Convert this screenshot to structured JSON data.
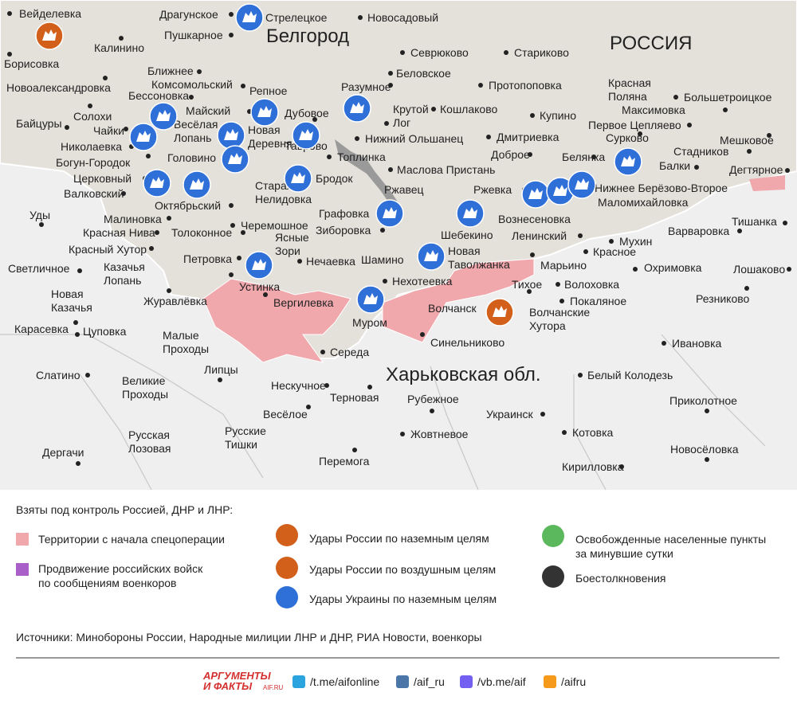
{
  "map": {
    "country_label": "РОССИЯ",
    "city_label": "Белгород",
    "region_label": "Харьковская обл.",
    "places": [
      {
        "lines": [
          "Вейделевка"
        ]
      },
      {
        "lines": [
          "Драгунское"
        ]
      },
      {
        "lines": [
          "Стрелецкое"
        ]
      },
      {
        "lines": [
          "Новосадовый"
        ]
      },
      {
        "lines": [
          "Пушкарное"
        ]
      },
      {
        "lines": [
          "Калинино"
        ]
      },
      {
        "lines": [
          "Борисовка"
        ]
      },
      {
        "lines": [
          "Севрюково"
        ]
      },
      {
        "lines": [
          "Стариково"
        ]
      },
      {
        "lines": [
          "Ближнее"
        ]
      },
      {
        "lines": [
          "Беловское"
        ]
      },
      {
        "lines": [
          "Новоалександровка"
        ]
      },
      {
        "lines": [
          "Комсомольский"
        ]
      },
      {
        "lines": [
          "Разумное"
        ]
      },
      {
        "lines": [
          "Протопоповка"
        ]
      },
      {
        "lines": [
          "Красная",
          "Поляна"
        ]
      },
      {
        "lines": [
          "Бессоновка"
        ]
      },
      {
        "lines": [
          "Репное"
        ]
      },
      {
        "lines": [
          "Большетроицкое"
        ]
      },
      {
        "lines": [
          "Майский"
        ]
      },
      {
        "lines": [
          "Дубовое"
        ]
      },
      {
        "lines": [
          "Крутой",
          "Лог"
        ]
      },
      {
        "lines": [
          "Кошлаково"
        ]
      },
      {
        "lines": [
          "Максимовка"
        ]
      },
      {
        "lines": [
          "Солохи"
        ]
      },
      {
        "lines": [
          "Купино"
        ]
      },
      {
        "lines": [
          "Байцуры"
        ]
      },
      {
        "lines": [
          "Весёлая",
          "Лопань"
        ]
      },
      {
        "lines": [
          "Новая",
          "Деревня"
        ]
      },
      {
        "lines": [
          "Чайки"
        ]
      },
      {
        "lines": [
          "Первое Цепляево"
        ]
      },
      {
        "lines": [
          "Нижний Ольшанец"
        ]
      },
      {
        "lines": [
          "Дмитриевка"
        ]
      },
      {
        "lines": [
          "Сурково"
        ]
      },
      {
        "lines": [
          "Мешковое"
        ]
      },
      {
        "lines": [
          "Николаевка"
        ]
      },
      {
        "lines": [
          "Стадников"
        ]
      },
      {
        "lines": [
          "Таврово"
        ]
      },
      {
        "lines": [
          "Топлинка"
        ]
      },
      {
        "lines": [
          "Доброе"
        ]
      },
      {
        "lines": [
          "Белянка"
        ]
      },
      {
        "lines": [
          "Головино"
        ]
      },
      {
        "lines": [
          "Богун-Городок"
        ]
      },
      {
        "lines": [
          "Балки"
        ]
      },
      {
        "lines": [
          "Маслова Пристань"
        ]
      },
      {
        "lines": [
          "Дегтярное"
        ]
      },
      {
        "lines": [
          "Бродок"
        ]
      },
      {
        "lines": [
          "Церковный"
        ]
      },
      {
        "lines": [
          "Старая",
          "Нелидовка"
        ]
      },
      {
        "lines": [
          "Ржавец"
        ]
      },
      {
        "lines": [
          "Ржевка"
        ]
      },
      {
        "lines": [
          "Нижнее Берёзово-Второе"
        ]
      },
      {
        "lines": [
          "Валковский"
        ]
      },
      {
        "lines": [
          "Маломихайловка"
        ]
      },
      {
        "lines": [
          "Октябрьский"
        ]
      },
      {
        "lines": [
          "Графовка"
        ]
      },
      {
        "lines": [
          "Шебекино"
        ]
      },
      {
        "lines": [
          "Вознесеновка"
        ]
      },
      {
        "lines": [
          "Уды"
        ]
      },
      {
        "lines": [
          "Малиновка"
        ]
      },
      {
        "lines": [
          "Тишанка"
        ]
      },
      {
        "lines": [
          "Черемошное"
        ]
      },
      {
        "lines": [
          "Зиборовка"
        ]
      },
      {
        "lines": [
          "Красная Нива"
        ]
      },
      {
        "lines": [
          "Толоконное"
        ]
      },
      {
        "lines": [
          "Ленинский"
        ]
      },
      {
        "lines": [
          "Варваровка"
        ]
      },
      {
        "lines": [
          "Ясные",
          "Зори"
        ]
      },
      {
        "lines": [
          "Мухин"
        ]
      },
      {
        "lines": [
          "Красный Хутор"
        ]
      },
      {
        "lines": [
          "Новая",
          "Таволжанка"
        ]
      },
      {
        "lines": [
          "Красное"
        ]
      },
      {
        "lines": [
          "Петровка"
        ]
      },
      {
        "lines": [
          "Нечаевка"
        ]
      },
      {
        "lines": [
          "Шамино"
        ]
      },
      {
        "lines": [
          "Марьино"
        ]
      },
      {
        "lines": [
          "Светличное"
        ]
      },
      {
        "lines": [
          "Казачья",
          "Лопань"
        ]
      },
      {
        "lines": [
          "Охримовка"
        ]
      },
      {
        "lines": [
          "Лошаково"
        ]
      },
      {
        "lines": [
          "Устинка"
        ]
      },
      {
        "lines": [
          "Новая",
          "Казачья"
        ]
      },
      {
        "lines": [
          "Нехотеевка"
        ]
      },
      {
        "lines": [
          "Тихое"
        ]
      },
      {
        "lines": [
          "Волоховка"
        ]
      },
      {
        "lines": [
          "Резниково"
        ]
      },
      {
        "lines": [
          "Журавлёвка"
        ]
      },
      {
        "lines": [
          "Вергилевка"
        ]
      },
      {
        "lines": [
          "Покаляное"
        ]
      },
      {
        "lines": [
          "Волчанск"
        ]
      },
      {
        "lines": [
          "Волчанские",
          "Хутора"
        ]
      },
      {
        "lines": [
          "Муром"
        ]
      },
      {
        "lines": [
          "Карасевка"
        ]
      },
      {
        "lines": [
          "Цуповка"
        ]
      },
      {
        "lines": [
          "Малые",
          "Проходы"
        ]
      },
      {
        "lines": [
          "Синельниково"
        ]
      },
      {
        "lines": [
          "Ивановка"
        ]
      },
      {
        "lines": [
          "Середа"
        ]
      },
      {
        "lines": [
          "Липцы"
        ]
      },
      {
        "lines": [
          "Белый Колодезь"
        ]
      },
      {
        "lines": [
          "Слатино"
        ]
      },
      {
        "lines": [
          "Великие",
          "Проходы"
        ]
      },
      {
        "lines": [
          "Нескучное"
        ]
      },
      {
        "lines": [
          "Терновая"
        ]
      },
      {
        "lines": [
          "Рубежное"
        ]
      },
      {
        "lines": [
          "Приколотное"
        ]
      },
      {
        "lines": [
          "Весёлое"
        ]
      },
      {
        "lines": [
          "Украинск"
        ]
      },
      {
        "lines": [
          "Русские",
          "Тишки"
        ]
      },
      {
        "lines": [
          "Жовтневое"
        ]
      },
      {
        "lines": [
          "Котовка"
        ]
      },
      {
        "lines": [
          "Русская",
          "Лозовая"
        ]
      },
      {
        "lines": [
          "Новосёловка"
        ]
      },
      {
        "lines": [
          "Дергачи"
        ]
      },
      {
        "lines": [
          "Перемога"
        ]
      },
      {
        "lines": [
          "Кирилловка"
        ]
      }
    ]
  },
  "legend": {
    "title": "Взяты под контроль Россией, ДНР и ЛНР:",
    "items": [
      {
        "lines": [
          "Территории с начала спецоперации"
        ]
      },
      {
        "lines": [
          "Продвижение российских войск",
          "по сообщениям военкоров"
        ]
      },
      {
        "lines": [
          "Удары России по наземным целям"
        ]
      },
      {
        "lines": [
          "Удары России по воздушным целям"
        ]
      },
      {
        "lines": [
          "Удары Украины по наземным целям"
        ]
      },
      {
        "lines": [
          "Освобожденные населенные пункты",
          "за минувшие сутки"
        ]
      },
      {
        "lines": [
          "Боестолкновения"
        ]
      }
    ]
  },
  "sources": "Источники: Минобороны России, Народные милиции ЛНР и ДНР, РИА Новости, военкоры",
  "footer": {
    "brand": [
      "АРГУМЕНТЫ",
      "И ФАКТЫ",
      "AIF.RU"
    ],
    "links": [
      "/t.me/aifonline",
      "/aif_ru",
      "/vb.me/aif",
      "/aifru"
    ]
  }
}
